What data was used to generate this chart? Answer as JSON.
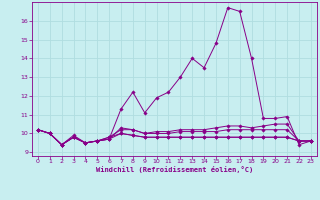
{
  "xlabel": "Windchill (Refroidissement éolien,°C)",
  "background_color": "#c8eef0",
  "grid_color": "#b0dde0",
  "line_color": "#880088",
  "xlim": [
    -0.5,
    23.5
  ],
  "ylim": [
    8.8,
    17.0
  ],
  "yticks": [
    9,
    10,
    11,
    12,
    13,
    14,
    15,
    16
  ],
  "xticks": [
    0,
    1,
    2,
    3,
    4,
    5,
    6,
    7,
    8,
    9,
    10,
    11,
    12,
    13,
    14,
    15,
    16,
    17,
    18,
    19,
    20,
    21,
    22,
    23
  ],
  "series": [
    [
      10.2,
      10.0,
      9.4,
      9.9,
      9.5,
      9.6,
      9.7,
      11.3,
      12.2,
      11.1,
      11.9,
      12.2,
      13.0,
      14.0,
      13.5,
      14.8,
      16.7,
      16.5,
      14.0,
      10.8,
      10.8,
      10.9,
      9.4,
      9.6
    ],
    [
      10.2,
      10.0,
      9.4,
      9.8,
      9.5,
      9.6,
      9.7,
      10.3,
      10.2,
      10.0,
      10.0,
      10.0,
      10.1,
      10.1,
      10.1,
      10.1,
      10.2,
      10.2,
      10.2,
      10.2,
      10.2,
      10.2,
      9.6,
      9.6
    ],
    [
      10.2,
      10.0,
      9.4,
      9.8,
      9.5,
      9.6,
      9.7,
      10.0,
      9.9,
      9.8,
      9.8,
      9.8,
      9.8,
      9.8,
      9.8,
      9.8,
      9.8,
      9.8,
      9.8,
      9.8,
      9.8,
      9.8,
      9.6,
      9.6
    ],
    [
      10.2,
      10.0,
      9.4,
      9.8,
      9.5,
      9.6,
      9.8,
      10.0,
      9.9,
      9.8,
      9.8,
      9.8,
      9.8,
      9.8,
      9.8,
      9.8,
      9.8,
      9.8,
      9.8,
      9.8,
      9.8,
      9.8,
      9.6,
      9.6
    ],
    [
      10.2,
      10.0,
      9.4,
      9.8,
      9.5,
      9.6,
      9.8,
      10.2,
      10.2,
      10.0,
      10.1,
      10.1,
      10.2,
      10.2,
      10.2,
      10.3,
      10.4,
      10.4,
      10.3,
      10.4,
      10.5,
      10.5,
      9.6,
      9.6
    ]
  ]
}
